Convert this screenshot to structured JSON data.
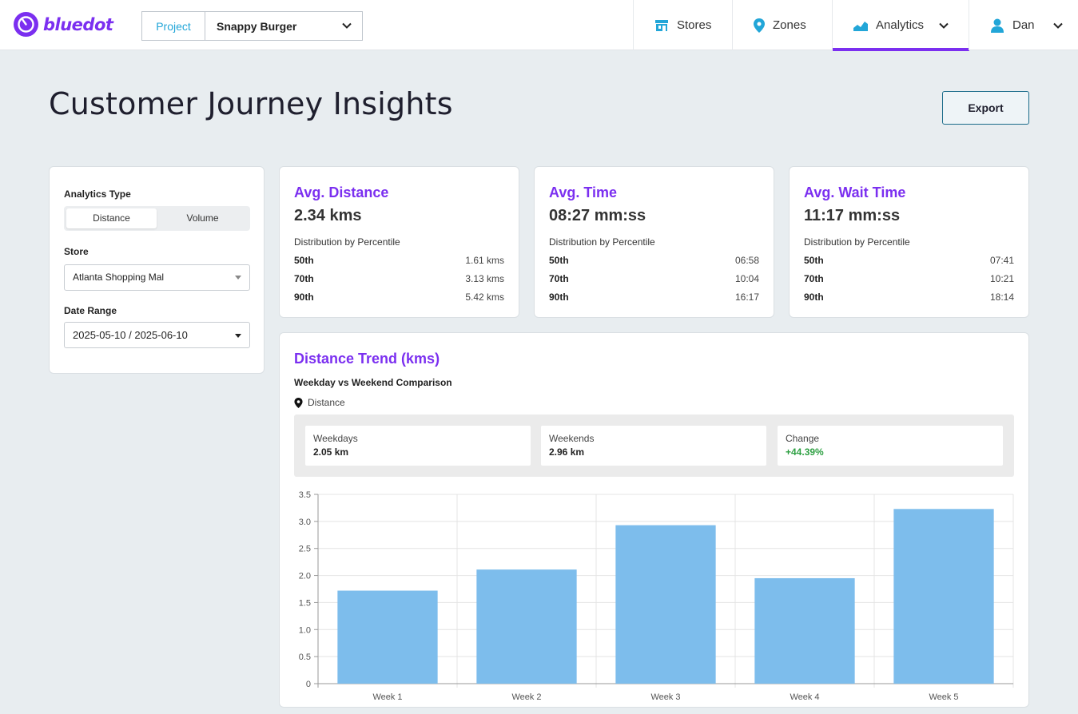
{
  "header": {
    "logo_text": "bluedot",
    "project_label": "Project",
    "project_value": "Snappy Burger",
    "nav": [
      {
        "label": "Stores",
        "icon": "store-icon"
      },
      {
        "label": "Zones",
        "icon": "map-pin-icon"
      },
      {
        "label": "Analytics",
        "icon": "area-chart-icon",
        "active": true
      },
      {
        "label": "Dan",
        "icon": "user-icon"
      }
    ],
    "accent_color": "#7b2ff0"
  },
  "page": {
    "title": "Customer Journey Insights",
    "export_label": "Export"
  },
  "filters": {
    "analytics_type_label": "Analytics Type",
    "analytics_type_options": [
      "Distance",
      "Volume"
    ],
    "analytics_type_selected": "Distance",
    "store_label": "Store",
    "store_value": "Atlanta Shopping Mal",
    "date_range_label": "Date Range",
    "date_range_value": "2025-05-10 / 2025-06-10"
  },
  "stats": [
    {
      "title": "Avg. Distance",
      "value": "2.34 kms",
      "subtitle": "Distribution by Percentile",
      "percentiles": [
        {
          "k": "50th",
          "v": "1.61 kms"
        },
        {
          "k": "70th",
          "v": "3.13 kms"
        },
        {
          "k": "90th",
          "v": "5.42 kms"
        }
      ]
    },
    {
      "title": "Avg. Time",
      "value": "08:27 mm:ss",
      "subtitle": "Distribution by Percentile",
      "percentiles": [
        {
          "k": "50th",
          "v": "06:58"
        },
        {
          "k": "70th",
          "v": "10:04"
        },
        {
          "k": "90th",
          "v": "16:17"
        }
      ]
    },
    {
      "title": "Avg. Wait Time",
      "value": "11:17 mm:ss",
      "subtitle": "Distribution by Percentile",
      "percentiles": [
        {
          "k": "50th",
          "v": "07:41"
        },
        {
          "k": "70th",
          "v": "10:21"
        },
        {
          "k": "90th",
          "v": "18:14"
        }
      ]
    }
  ],
  "trend": {
    "title": "Distance Trend (kms)",
    "subtitle": "Weekday vs Weekend Comparison",
    "legend_label": "Distance",
    "comparison": {
      "weekdays_label": "Weekdays",
      "weekdays_value": "2.05 km",
      "weekends_label": "Weekends",
      "weekends_value": "2.96 km",
      "change_label": "Change",
      "change_value": "+44.39%",
      "change_color": "#2ea043"
    }
  },
  "chart_data": {
    "type": "bar",
    "categories": [
      "Week 1",
      "Week 2",
      "Week 3",
      "Week 4",
      "Week 5"
    ],
    "values": [
      1.72,
      2.11,
      2.93,
      1.95,
      3.23
    ],
    "ylim": [
      0,
      3.5
    ],
    "yticks": [
      "0",
      "0.5",
      "1.0",
      "1.5",
      "2.0",
      "2.5",
      "3.0",
      "3.5"
    ],
    "ytick_values": [
      0,
      0.5,
      1.0,
      1.5,
      2.0,
      2.5,
      3.0,
      3.5
    ],
    "grid": true,
    "bar_color": "#7dbdec"
  }
}
